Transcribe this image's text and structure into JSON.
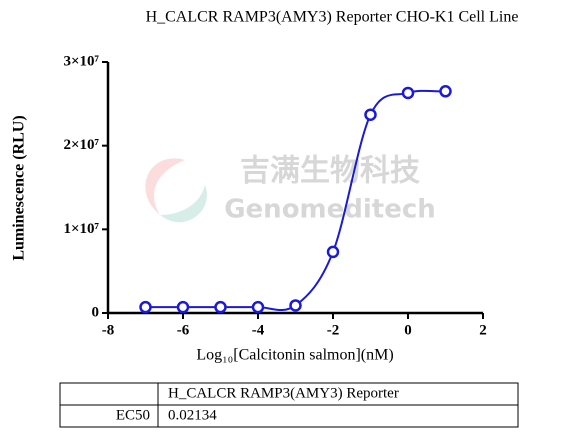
{
  "chart_data": {
    "type": "line",
    "title": "H_CALCR RAMP3(AMY3) Reporter CHO-K1 Cell Line",
    "x_label": "Log₁₀[Calcitonin salmon](nM)",
    "y_label": "Luminescence (RLU)",
    "watermark": [
      "吉满生物科技",
      "Genomeditech"
    ],
    "x": [
      -7,
      -6,
      -5,
      -4,
      -3,
      -2,
      -1,
      0,
      1
    ],
    "series": [
      {
        "name": "H_CALCR RAMP3(AMY3) Reporter",
        "color": "#1a1ad8",
        "values": [
          700000,
          700000,
          700000,
          700000,
          900000,
          7300000,
          23700000,
          26300000,
          26500000
        ]
      }
    ],
    "xlim": [
      -8,
      2
    ],
    "xticks": [
      -8,
      -6,
      -4,
      -2,
      0,
      2
    ],
    "ylim": [
      0,
      30000000
    ],
    "yticks": [
      0,
      {
        "value": 10000000,
        "label": "1×10⁷"
      },
      {
        "value": 20000000,
        "label": "2×10⁷"
      },
      {
        "value": 30000000,
        "label": "3×10⁷"
      }
    ]
  },
  "table": {
    "header": [
      "H_CALCR RAMP3(AMY3) Reporter"
    ],
    "rows": [
      [
        "EC50",
        "0.02134"
      ]
    ]
  }
}
